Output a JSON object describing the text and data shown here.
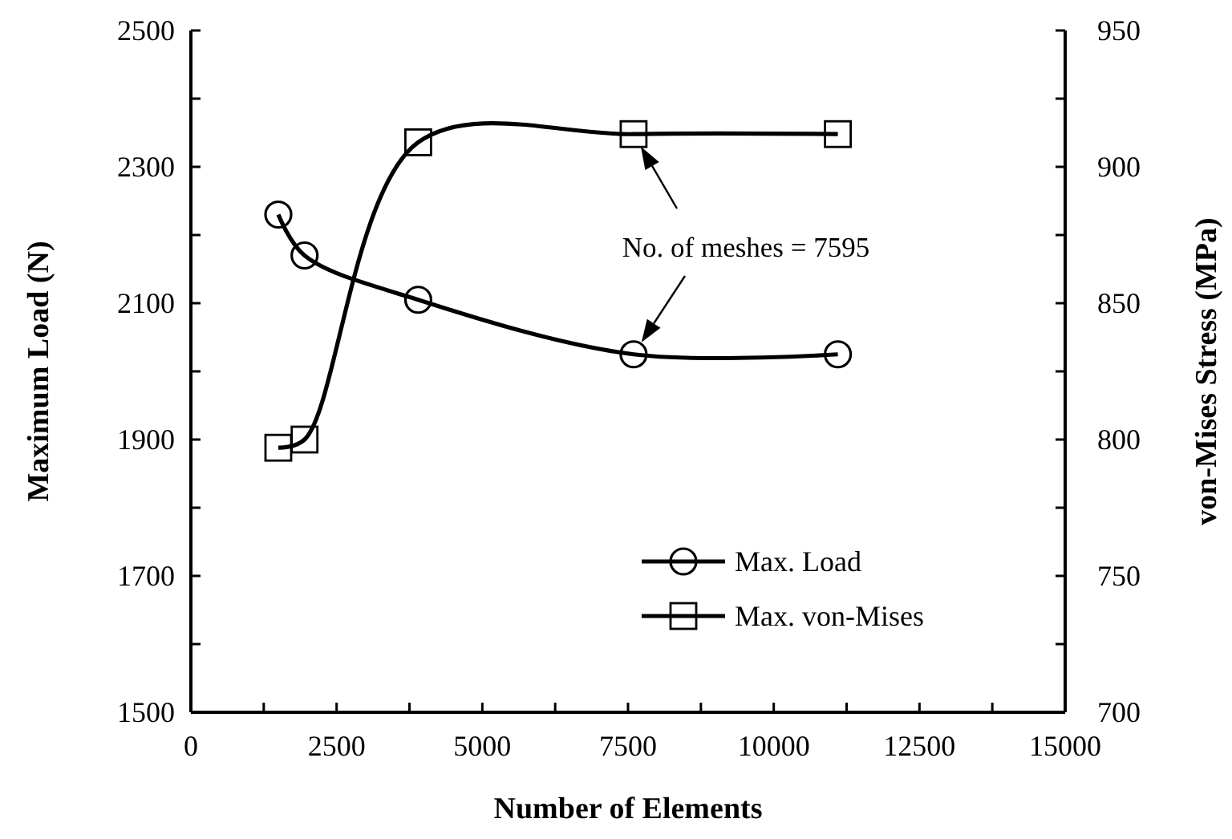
{
  "chart_data": {
    "type": "line",
    "xlabel": "Number of Elements",
    "ylabel": "Maximum Load (N)",
    "y2label": "von-Mises Stress (MPa)",
    "annotations": [
      "No. of meshes = 7595"
    ],
    "legend": "bottom right",
    "grid": false,
    "line_style": "solid",
    "xlim": [
      0,
      15000
    ],
    "xticks": [
      0,
      {
        "value": 1250,
        "label": null
      },
      2500,
      {
        "value": 3750,
        "label": null
      },
      5000,
      {
        "value": 6250,
        "label": null
      },
      7500,
      {
        "value": 8750,
        "label": null
      },
      10000,
      {
        "value": 11250,
        "label": null
      },
      12500,
      {
        "value": 13750,
        "label": null
      },
      15000
    ],
    "ylim": [
      1500,
      2500
    ],
    "yticks": [
      1500,
      {
        "value": 1600,
        "label": null
      },
      1700,
      {
        "value": 1800,
        "label": null
      },
      1900,
      {
        "value": 2000,
        "label": null
      },
      2100,
      {
        "value": 2200,
        "label": null
      },
      2300,
      {
        "value": 2400,
        "label": null
      },
      2500
    ],
    "y2lim": [
      700,
      950
    ],
    "y2ticks": [
      700,
      {
        "value": 725,
        "label": null
      },
      750,
      {
        "value": 775,
        "label": null
      },
      800,
      {
        "value": 825,
        "label": null
      },
      850,
      {
        "value": 875,
        "label": null
      },
      900,
      {
        "value": 925,
        "label": null
      },
      950
    ],
    "series": [
      {
        "name": "Max. Load",
        "color": "#000000",
        "marker": "circle",
        "x": [
          1500,
          1950,
          3900,
          7595,
          11100
        ],
        "values": [
          2230,
          2170,
          2105,
          2025,
          2025
        ]
      },
      {
        "name": "Max. von-Mises",
        "color": "#000000",
        "marker": "square",
        "axis": "y2",
        "x": [
          1500,
          1950,
          3900,
          7595,
          11100
        ],
        "values": [
          797,
          800,
          909,
          912,
          912
        ]
      }
    ]
  }
}
